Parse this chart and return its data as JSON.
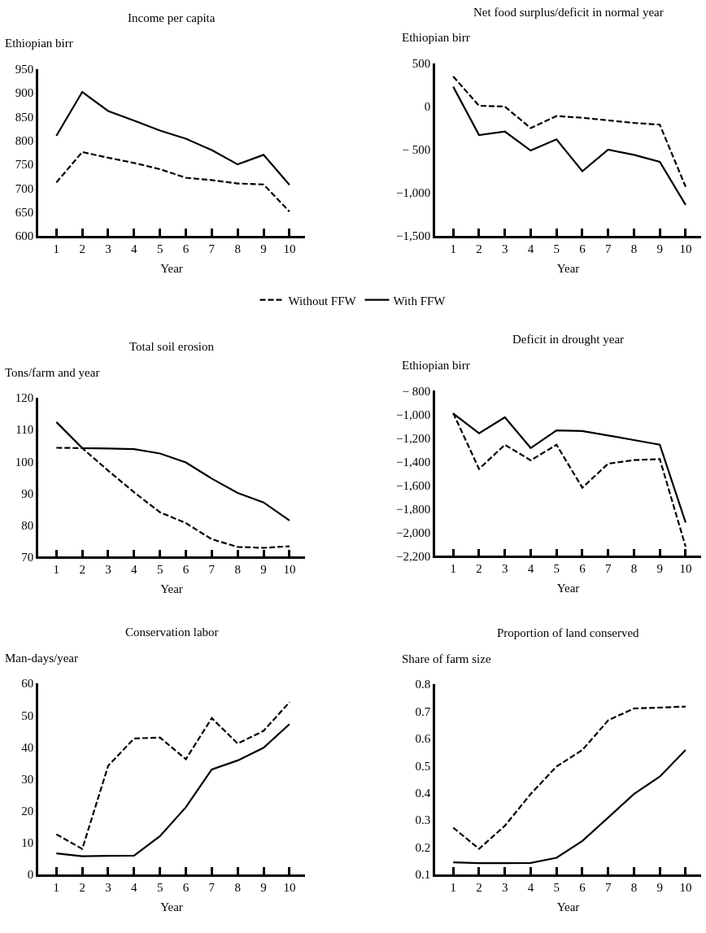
{
  "chart_data": [
    {
      "type": "line",
      "title": "Income per capita",
      "ylabel": "Ethiopian birr",
      "xlabel": "Year",
      "x": [
        1,
        2,
        3,
        4,
        5,
        6,
        7,
        8,
        9,
        10
      ],
      "xlim": [
        0.3,
        10.6
      ],
      "xticks": [
        1,
        2,
        3,
        4,
        5,
        6,
        7,
        8,
        9,
        10
      ],
      "ylim": [
        600,
        950
      ],
      "yticks": [
        600,
        650,
        700,
        750,
        800,
        850,
        900,
        950
      ],
      "legend": "bottom",
      "series": [
        {
          "name": "Without FFW",
          "color": "#000000",
          "line_style": "dashed",
          "values": [
            712,
            776,
            764,
            753,
            740,
            722,
            717,
            710,
            708,
            651
          ]
        },
        {
          "name": "With FFW",
          "color": "#000000",
          "line_style": "solid",
          "values": [
            810,
            902,
            862,
            842,
            821,
            804,
            780,
            750,
            770,
            707
          ]
        }
      ]
    },
    {
      "type": "line",
      "title": "Net food surplus/deficit in normal year",
      "ylabel": "Ethiopian birr",
      "xlabel": "Year",
      "x": [
        1,
        2,
        3,
        4,
        5,
        6,
        7,
        8,
        9,
        10
      ],
      "xlim": [
        0.3,
        10.6
      ],
      "xticks": [
        1,
        2,
        3,
        4,
        5,
        6,
        7,
        8,
        9,
        10
      ],
      "ylim": [
        -1500,
        500
      ],
      "yticks": [
        {
          "value": -1500,
          "label": "−1,500"
        },
        {
          "value": -1000,
          "label": "−1,000"
        },
        {
          "value": -500,
          "label": "− 500"
        },
        0,
        500
      ],
      "series": [
        {
          "color": "#000000",
          "line_style": "dashed",
          "values": [
            350,
            10,
            0,
            -250,
            -110,
            -130,
            -160,
            -190,
            -210,
            -930
          ]
        },
        {
          "color": "#000000",
          "line_style": "solid",
          "values": [
            230,
            -330,
            -290,
            -510,
            -380,
            -750,
            -500,
            -560,
            -640,
            -1140
          ]
        }
      ]
    },
    {
      "type": "line",
      "title": "Total soil erosion",
      "ylabel": "Tons/farm and year",
      "xlabel": "Year",
      "x": [
        1,
        2,
        3,
        4,
        5,
        6,
        7,
        8,
        9,
        10
      ],
      "xlim": [
        0.3,
        10.6
      ],
      "xticks": [
        1,
        2,
        3,
        4,
        5,
        6,
        7,
        8,
        9,
        10
      ],
      "ylim": [
        70,
        120
      ],
      "yticks": [
        70,
        80,
        90,
        100,
        110,
        120
      ],
      "series": [
        {
          "color": "#000000",
          "line_style": "dashed",
          "values": [
            104.3,
            104.2,
            97.1,
            90.3,
            84,
            80.6,
            75.5,
            73.1,
            72.8,
            73.3
          ]
        },
        {
          "color": "#000000",
          "line_style": "solid",
          "values": [
            112.4,
            104.2,
            104.1,
            103.9,
            102.5,
            99.7,
            94.6,
            90.1,
            87.1,
            81.4
          ]
        }
      ]
    },
    {
      "type": "line",
      "title": "Deficit in drought year",
      "ylabel": "Ethiopian birr",
      "xlabel": "Year",
      "x": [
        1,
        2,
        3,
        4,
        5,
        6,
        7,
        8,
        9,
        10
      ],
      "xlim": [
        0.3,
        10.6
      ],
      "xticks": [
        1,
        2,
        3,
        4,
        5,
        6,
        7,
        8,
        9,
        10
      ],
      "ylim": [
        -2200,
        -800
      ],
      "yticks": [
        {
          "value": -2200,
          "label": "−2,200"
        },
        {
          "value": -2000,
          "label": "−2,000"
        },
        {
          "value": -1800,
          "label": "−1,800"
        },
        {
          "value": -1600,
          "label": "−1,600"
        },
        {
          "value": -1400,
          "label": "−1,400"
        },
        {
          "value": -1200,
          "label": "−1,200"
        },
        {
          "value": -1000,
          "label": "−1,000"
        },
        {
          "value": -800,
          "label": "− 800"
        }
      ],
      "series": [
        {
          "color": "#000000",
          "line_style": "dashed",
          "values": [
            -990,
            -1463,
            -1258,
            -1390,
            -1258,
            -1622,
            -1418,
            -1388,
            -1379,
            -2121
          ]
        },
        {
          "color": "#000000",
          "line_style": "solid",
          "values": [
            -993,
            -1161,
            -1025,
            -1286,
            -1136,
            -1141,
            -1179,
            -1218,
            -1258,
            -1917
          ]
        }
      ]
    },
    {
      "type": "line",
      "title": "Conservation labor",
      "ylabel": "Man-days/year",
      "xlabel": "Year",
      "x": [
        1,
        2,
        3,
        4,
        5,
        6,
        7,
        8,
        9,
        10
      ],
      "xlim": [
        0.3,
        10.6
      ],
      "xticks": [
        1,
        2,
        3,
        4,
        5,
        6,
        7,
        8,
        9,
        10
      ],
      "ylim": [
        0,
        60
      ],
      "yticks": [
        0,
        10,
        20,
        30,
        40,
        50,
        60
      ],
      "series": [
        {
          "color": "#000000",
          "line_style": "dashed",
          "values": [
            12.6,
            8,
            34.1,
            42.7,
            43,
            36.2,
            49.1,
            41.1,
            45.1,
            54.1
          ]
        },
        {
          "color": "#000000",
          "line_style": "solid",
          "values": [
            6.6,
            5.7,
            5.8,
            5.9,
            12,
            21.1,
            33,
            35.8,
            39.8,
            47.2
          ]
        }
      ]
    },
    {
      "type": "line",
      "title": "Proportion of land conserved",
      "ylabel": "Share of farm size",
      "xlabel": "Year",
      "x": [
        1,
        2,
        3,
        4,
        5,
        6,
        7,
        8,
        9,
        10
      ],
      "xlim": [
        0.3,
        10.6
      ],
      "xticks": [
        1,
        2,
        3,
        4,
        5,
        6,
        7,
        8,
        9,
        10
      ],
      "ylim": [
        0.1,
        0.8
      ],
      "yticks": [
        0.1,
        0.2,
        0.3,
        0.4,
        0.5,
        0.6,
        0.7,
        0.8
      ],
      "series": [
        {
          "color": "#000000",
          "line_style": "dashed",
          "values": [
            0.272,
            0.194,
            0.279,
            0.396,
            0.497,
            0.558,
            0.667,
            0.711,
            0.714,
            0.718
          ]
        },
        {
          "color": "#000000",
          "line_style": "solid",
          "values": [
            0.144,
            0.141,
            0.141,
            0.142,
            0.161,
            0.223,
            0.309,
            0.396,
            0.46,
            0.558
          ]
        }
      ]
    }
  ]
}
